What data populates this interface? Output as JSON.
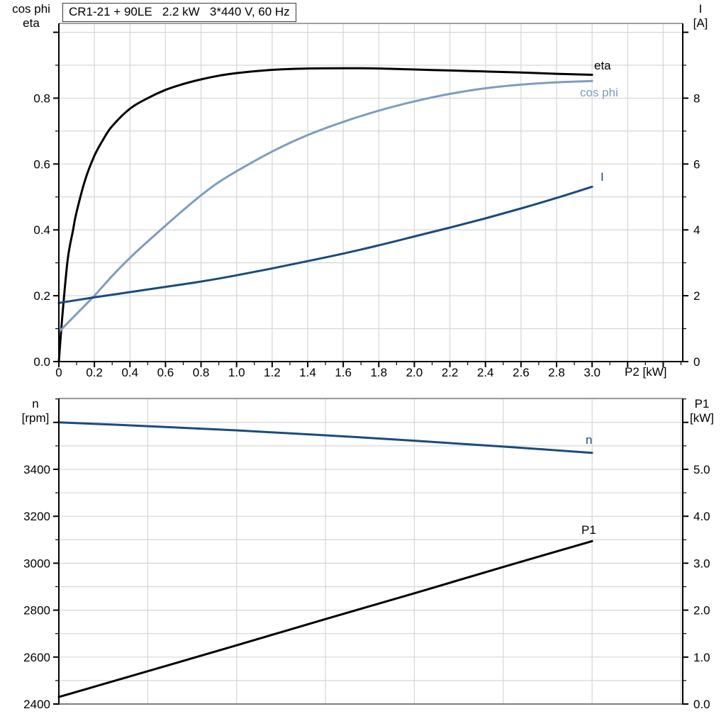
{
  "title_box": {
    "text": "CR1-21 + 90LE   2.2 kW   3*440 V, 60 Hz"
  },
  "corner_labels": {
    "top_left": [
      "cos phi",
      "eta"
    ],
    "top_right": [
      "I",
      "[A]"
    ],
    "bottom_left": [
      "n",
      "[rpm]"
    ],
    "bottom_right": [
      "P1",
      "[kW]"
    ]
  },
  "colors": {
    "eta": "#000000",
    "cos_phi": "#7D9CC0",
    "current": "#1A4B7D",
    "speed": "#1A4B7D",
    "p1": "#000000",
    "grid": "#d6d6d6",
    "axis": "#000000",
    "border_gray": "#808080",
    "text": "#000000"
  },
  "chart_data": [
    {
      "type": "line",
      "title": "CR1-21 + 90LE  2.2 kW  3*440 V, 60 Hz",
      "xlabel": "P2 [kW]",
      "xlim": [
        0,
        3.51
      ],
      "x_ticks": {
        "labels": [
          "0",
          "0.2",
          "0.4",
          "0.6",
          "0.8",
          "1.0",
          "1.2",
          "1.4",
          "1.6",
          "1.8",
          "2.0",
          "2.2",
          "2.4",
          "2.6",
          "2.8",
          "3.0"
        ],
        "values": [
          0,
          0.2,
          0.4,
          0.6,
          0.8,
          1.0,
          1.2,
          1.4,
          1.6,
          1.8,
          2.0,
          2.2,
          2.4,
          2.6,
          2.8,
          3.0
        ]
      },
      "left_axis": {
        "label": "cos phi / eta",
        "lim": [
          0,
          1.027
        ],
        "tick_labels": [
          "0.0",
          "0.2",
          "0.4",
          "0.6",
          "0.8"
        ],
        "tick_values": [
          0,
          0.2,
          0.4,
          0.6,
          0.8
        ]
      },
      "right_axis": {
        "label": "I [A]",
        "lim": [
          0,
          10.27
        ],
        "tick_labels": [
          "0",
          "2",
          "4",
          "6",
          "8"
        ],
        "tick_values": [
          0,
          2,
          4,
          6,
          8
        ]
      },
      "grid": {
        "x_step": 0.2,
        "y_step": 0.1,
        "on": true
      },
      "legend_position": "curve-end-labels",
      "series": [
        {
          "name": "eta",
          "axis": "left",
          "color_key": "eta",
          "x": [
            0,
            0.02,
            0.05,
            0.08,
            0.1,
            0.15,
            0.2,
            0.25,
            0.3,
            0.4,
            0.5,
            0.6,
            0.7,
            0.8,
            0.9,
            1.0,
            1.2,
            1.4,
            1.6,
            1.8,
            2.0,
            2.2,
            2.4,
            2.6,
            2.8,
            3.0
          ],
          "y": [
            0,
            0.14,
            0.31,
            0.4,
            0.455,
            0.555,
            0.625,
            0.675,
            0.715,
            0.768,
            0.8,
            0.825,
            0.843,
            0.857,
            0.868,
            0.876,
            0.886,
            0.89,
            0.891,
            0.89,
            0.887,
            0.884,
            0.881,
            0.878,
            0.874,
            0.871
          ]
        },
        {
          "name": "cos phi",
          "axis": "left",
          "color_key": "cos_phi",
          "x": [
            0,
            0.1,
            0.2,
            0.3,
            0.4,
            0.5,
            0.6,
            0.7,
            0.8,
            0.9,
            1.0,
            1.2,
            1.4,
            1.6,
            1.8,
            2.0,
            2.2,
            2.4,
            2.6,
            2.8,
            3.0
          ],
          "y": [
            0.09,
            0.145,
            0.2,
            0.26,
            0.315,
            0.365,
            0.413,
            0.46,
            0.505,
            0.545,
            0.578,
            0.638,
            0.688,
            0.728,
            0.762,
            0.79,
            0.813,
            0.83,
            0.841,
            0.848,
            0.852
          ]
        },
        {
          "name": "I",
          "axis": "right",
          "color_key": "current",
          "x": [
            0,
            0.2,
            0.4,
            0.6,
            0.8,
            1.0,
            1.2,
            1.4,
            1.6,
            1.8,
            2.0,
            2.2,
            2.4,
            2.6,
            2.8,
            3.0
          ],
          "y": [
            1.78,
            1.95,
            2.11,
            2.27,
            2.43,
            2.62,
            2.83,
            3.05,
            3.28,
            3.53,
            3.8,
            4.07,
            4.35,
            4.65,
            4.97,
            5.31
          ]
        }
      ]
    },
    {
      "type": "line",
      "title": "",
      "xlabel": "",
      "xlim": [
        0,
        3.51
      ],
      "x_ticks": {
        "labels": [],
        "values": []
      },
      "left_axis": {
        "label": "n [rpm]",
        "lim": [
          2400,
          3702
        ],
        "tick_labels": [
          "2400",
          "2600",
          "2800",
          "3000",
          "3200",
          "3400"
        ],
        "tick_values": [
          2400,
          2600,
          2800,
          3000,
          3200,
          3400
        ]
      },
      "right_axis": {
        "label": "P1 [kW]",
        "lim": [
          0,
          6.51
        ],
        "tick_labels": [
          "0.0",
          "1.0",
          "2.0",
          "3.0",
          "4.0",
          "5.0"
        ],
        "tick_values": [
          0,
          1,
          2,
          3,
          4,
          5
        ]
      },
      "grid": {
        "x_step": 0.5,
        "y_step": 100,
        "on": true
      },
      "legend_position": "curve-end-labels",
      "series": [
        {
          "name": "n",
          "axis": "left",
          "color_key": "speed",
          "x": [
            0,
            0.5,
            1.0,
            1.5,
            2.0,
            2.5,
            3.0
          ],
          "y": [
            3600,
            3584,
            3566,
            3545,
            3522,
            3497,
            3470
          ]
        },
        {
          "name": "P1",
          "axis": "right",
          "color_key": "p1",
          "x": [
            0,
            0.5,
            1.0,
            1.5,
            2.0,
            2.5,
            3.0
          ],
          "y": [
            0.15,
            0.7,
            1.25,
            1.81,
            2.36,
            2.92,
            3.47
          ]
        }
      ]
    }
  ]
}
